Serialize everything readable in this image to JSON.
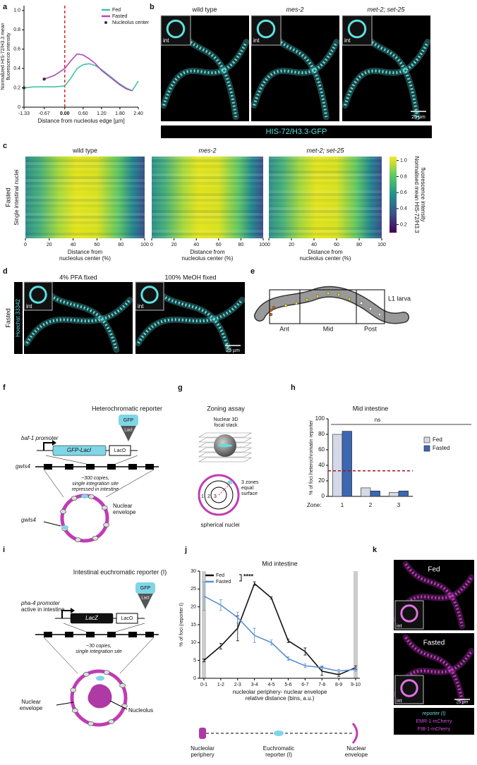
{
  "panel_letters": [
    "a",
    "b",
    "c",
    "d",
    "e",
    "f",
    "g",
    "h",
    "i",
    "j",
    "k"
  ],
  "chart_data": [
    {
      "type": "line",
      "xlabel": "Distance from nucleolus edge [µm]",
      "ylabel": [
        "Normalized HIS-72/H3.3 mean",
        "fluorescence intensity"
      ],
      "xlim": [
        -1.33,
        2.4
      ],
      "ylim": [
        0,
        1.05
      ],
      "xticks": [
        -1.33,
        -0.67,
        {
          "value": 0,
          "label": "0.00"
        },
        {
          "value": 0.6,
          "label": "0.60"
        },
        {
          "value": 1.2,
          "label": "1.20"
        },
        {
          "value": 1.8,
          "label": "1.80"
        },
        {
          "value": 2.4,
          "label": "2.40"
        }
      ],
      "yticks": [
        0,
        0.2,
        0.4,
        0.6,
        0.8,
        {
          "value": 1,
          "label": "1.0"
        }
      ],
      "vline": 0,
      "legend": "upper right",
      "series": [
        {
          "name": "Fed",
          "color": "#45c3a5",
          "x": [
            -1.33,
            -1,
            -0.67,
            -0.33,
            0,
            0.2,
            0.4,
            0.6,
            0.8,
            1,
            1.2,
            1.4,
            1.6,
            1.8,
            2,
            2.2,
            2.4
          ],
          "values": [
            0.2,
            0.21,
            0.21,
            0.21,
            0.22,
            0.3,
            0.4,
            0.44,
            0.45,
            0.43,
            0.39,
            0.34,
            0.29,
            0.24,
            0.2,
            0.17,
            0.27
          ]
        },
        {
          "name": "Fasted",
          "color": "#b548b8",
          "x": [
            -0.67,
            -0.33,
            0,
            0.2,
            0.4,
            0.6,
            0.8,
            1,
            1.2,
            1.4,
            1.6,
            1.8,
            2,
            2.2
          ],
          "values": [
            0.29,
            0.33,
            0.4,
            0.48,
            0.55,
            0.54,
            0.5,
            0.45,
            0.38,
            0.33,
            0.28,
            0.23,
            0.19,
            0.17
          ]
        },
        {
          "name": "Nucleolus center",
          "color": "#333333",
          "style": "points",
          "x": [
            -1.33,
            -0.67
          ],
          "values": [
            0.2,
            0.29
          ]
        }
      ]
    },
    {
      "type": "heatmap",
      "titles": [
        "wild type",
        "mes-2",
        "met-2; set-25"
      ],
      "xlabel": [
        "Distance from",
        "nucleolus center (%)"
      ],
      "ylabel": "Single intestinal nuclei",
      "condition": "Fasted",
      "xlim": [
        0,
        100
      ],
      "xticks": [
        0,
        20,
        40,
        60,
        80,
        100
      ],
      "colorbar_label": [
        "Normalised mean HIS-72/H3.3",
        "fluorescence intensity"
      ],
      "clim": [
        0.1,
        1.05
      ],
      "cticks": [
        0.2,
        0.4,
        0.6,
        0.8,
        {
          "value": 1,
          "label": "1.0"
        }
      ]
    },
    {
      "type": "bar",
      "title": "Mid intestine",
      "ylabel": "% of foci heterochromatin reporter",
      "xlabel": "Zone:",
      "categories": [
        "1",
        "2",
        "3"
      ],
      "series": [
        {
          "name": "Fed",
          "color": "#d5d8e6",
          "values": [
            80,
            11,
            5
          ]
        },
        {
          "name": "Fasted",
          "color": "#3d67b1",
          "values": [
            84,
            7,
            7
          ]
        }
      ],
      "ylim": [
        0,
        100
      ],
      "yticks": [
        0,
        20,
        40,
        60,
        80,
        100
      ],
      "hline": 33,
      "annotation": "ns",
      "legend": "upper right"
    },
    {
      "type": "line",
      "title": "Mid intestine",
      "ylabel": "% of foci (reporter I)",
      "xlabel": [
        "nucleolar periphery- nuclear envelope",
        "relative distance (bins, a.u.)"
      ],
      "categories": [
        "0-1",
        "1-2",
        "2-3",
        "3-4",
        "4-5",
        "5-6",
        "6-7",
        "7-8",
        "8-9",
        "9-10"
      ],
      "series": [
        {
          "name": "Fed",
          "color": "#111111",
          "values": [
            5,
            9,
            14,
            26.5,
            22.5,
            10.5,
            7.5,
            2,
            1,
            3
          ],
          "errors": [
            0.4,
            0.8,
            3.5,
            0.5,
            0.3,
            0.5,
            1,
            1.2,
            0.5,
            0.5
          ]
        },
        {
          "name": "Fasted",
          "color": "#5a8fd0",
          "values": [
            23,
            20.5,
            17,
            12,
            10,
            5.5,
            3.5,
            3,
            2,
            2.5
          ],
          "errors": [
            4,
            1.5,
            1.5,
            2,
            0.7,
            0.5,
            0.5,
            0.5,
            0.5,
            0.5
          ]
        }
      ],
      "ylim": [
        0,
        30
      ],
      "yticks": [
        0,
        5,
        10,
        15,
        20,
        25,
        30
      ],
      "legend": "upper left",
      "annotation": "****"
    }
  ],
  "b": {
    "titles": [
      "wild type",
      "mes-2",
      "met-2; set-25"
    ],
    "inset_labels": [
      "int",
      "int",
      "int"
    ],
    "scale_bar": "25 µm",
    "channel": "HIS-72/H3.3-GFP"
  },
  "d": {
    "titles": [
      "4% PFA fixed",
      "100% MeOH fixed"
    ],
    "condition": "Fasted",
    "stain": "Hoechst 33342",
    "inset_labels": [
      "int",
      "int"
    ],
    "scale_bar": "25 µm"
  },
  "e": {
    "regions": [
      "Ant",
      "Mid",
      "Post"
    ],
    "label": "L1 larva"
  },
  "f": {
    "title": "Heterochromatic reporter",
    "gfp": "GFP",
    "laci": "LacI",
    "promoter": "baf-1 promoter",
    "fusion": "GFP-LacI",
    "laco": "LacO",
    "locus": "gwIs4",
    "copies": [
      "~300 copies,",
      "single integration site",
      "repressed in intestine"
    ],
    "envelope": [
      "Nuclear",
      "envelope"
    ],
    "locus_2": "gwIs4"
  },
  "g": {
    "title": "Zoning assay",
    "stack": [
      "Nuclear 3D",
      "focal stack"
    ],
    "zones": [
      "3 zones",
      "equal",
      "surface"
    ],
    "zone_numbers": [
      "1",
      "2",
      "3"
    ],
    "caption": "spherical nuclei"
  },
  "i": {
    "title": "Intestinal euchromatic reporter (I)",
    "gfp": "GFP",
    "laci": "LacI",
    "promoter": [
      "pha-4 promoter",
      "active in intestine"
    ],
    "gene": "LacZ",
    "laco": "LacO",
    "copies": [
      "~30 copies,",
      "single integration site"
    ],
    "envelope": [
      "Nuclear",
      "envelope"
    ],
    "nucleolus": "Nucleolus"
  },
  "j_schematic": {
    "labels": [
      [
        "Nucleolar",
        "periphery"
      ],
      [
        "Euchromatic",
        "reporter (I)"
      ],
      [
        "Nuclear",
        "envelope"
      ]
    ]
  },
  "k": {
    "titles": [
      "Fed",
      "Fasted"
    ],
    "inset_labels": [
      "int",
      "int"
    ],
    "scale_bar": "25 µm",
    "legend": [
      "reporter (I)",
      "EMR-1-mCherry",
      "FIB-1-mCherry"
    ]
  }
}
